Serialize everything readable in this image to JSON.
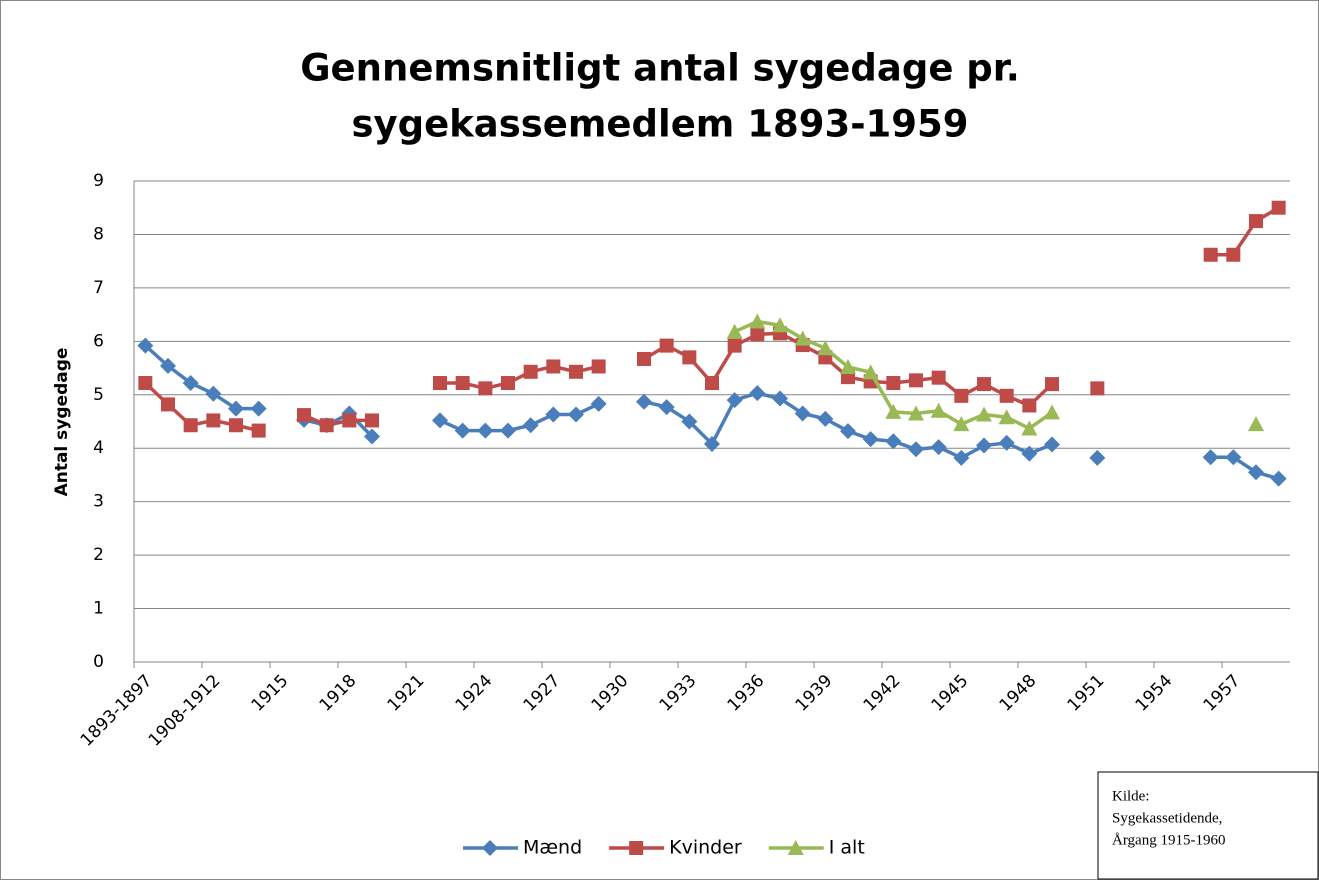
{
  "chart_data": {
    "type": "line",
    "title": [
      "Gennemsnitligt antal sygedage pr.",
      "sygekassemedlem 1893-1959"
    ],
    "y_label": "Antal sygedage",
    "categories": [
      "1893-1897",
      null,
      null,
      "1908-1912",
      null,
      null,
      "1915",
      null,
      null,
      "1918",
      null,
      null,
      "1921",
      null,
      null,
      "1924",
      null,
      null,
      "1927",
      null,
      null,
      "1930",
      null,
      null,
      "1933",
      null,
      null,
      "1936",
      null,
      null,
      "1939",
      null,
      null,
      "1942",
      null,
      null,
      "1945",
      null,
      null,
      "1948",
      null,
      null,
      "1951",
      null,
      null,
      "1954",
      null,
      null,
      "1957",
      null,
      null
    ],
    "series": [
      {
        "name": "Mænd",
        "color": "#4a7ebb",
        "marker": "diamond",
        "values": [
          5.92,
          5.54,
          5.22,
          5.02,
          4.74,
          4.74,
          null,
          4.53,
          4.43,
          4.65,
          4.22,
          null,
          null,
          4.52,
          4.33,
          4.33,
          4.33,
          4.43,
          4.63,
          4.63,
          4.83,
          null,
          4.87,
          4.77,
          4.5,
          4.08,
          4.9,
          5.03,
          4.93,
          4.65,
          4.55,
          4.32,
          4.17,
          4.13,
          3.98,
          4.02,
          3.82,
          4.05,
          4.1,
          3.9,
          4.07,
          null,
          3.82,
          null,
          null,
          null,
          null,
          3.83,
          3.83,
          3.55,
          3.43
        ]
      },
      {
        "name": "Kvinder",
        "color": "#be4b48",
        "marker": "square",
        "values": [
          5.22,
          4.82,
          4.43,
          4.52,
          4.43,
          4.33,
          null,
          4.62,
          4.43,
          4.52,
          4.52,
          null,
          null,
          5.22,
          5.22,
          5.12,
          5.22,
          5.43,
          5.53,
          5.43,
          5.53,
          null,
          5.67,
          5.92,
          5.7,
          5.22,
          5.92,
          6.13,
          6.15,
          5.93,
          5.7,
          5.33,
          5.25,
          5.22,
          5.27,
          5.32,
          4.98,
          5.2,
          4.98,
          4.8,
          5.2,
          null,
          5.12,
          null,
          null,
          null,
          null,
          7.62,
          7.62,
          8.25,
          8.5
        ]
      },
      {
        "name": "I alt",
        "color": "#98b954",
        "marker": "triangle",
        "values": [
          null,
          null,
          null,
          null,
          null,
          null,
          null,
          null,
          null,
          null,
          null,
          null,
          null,
          null,
          null,
          null,
          null,
          null,
          null,
          null,
          null,
          null,
          null,
          null,
          null,
          null,
          6.18,
          6.37,
          6.3,
          6.05,
          5.87,
          5.52,
          5.42,
          4.68,
          4.65,
          4.7,
          4.45,
          4.63,
          4.58,
          4.37,
          4.67,
          null,
          null,
          null,
          null,
          null,
          null,
          null,
          null,
          4.45,
          null
        ]
      }
    ],
    "ylim": [
      0,
      9
    ],
    "yticks": [
      0,
      1,
      2,
      3,
      4,
      5,
      6,
      7,
      8,
      9
    ],
    "grid": true,
    "legend": "bottom",
    "annotation": [
      "Kilde:",
      "Sygekassetidende,",
      "Årgang 1915-1960"
    ]
  }
}
